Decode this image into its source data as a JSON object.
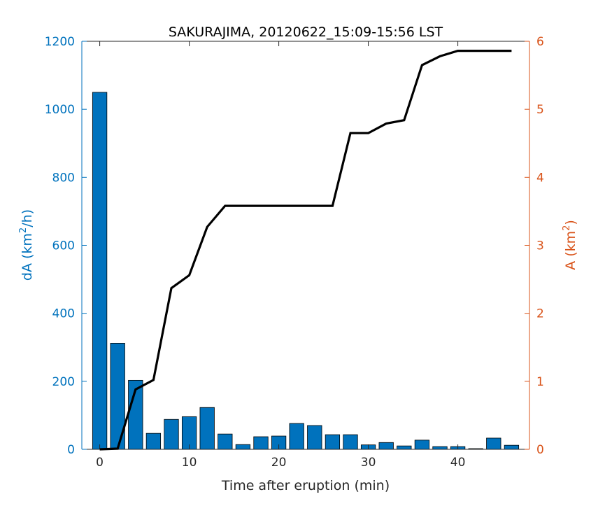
{
  "chart_data": {
    "type": "bar+line",
    "title": "SAKURAJIMA, 20120622_15:09-15:56 LST",
    "xlabel": "Time after eruption (min)",
    "ylabel_left": {
      "base": "dA (km",
      "sup": "2",
      "tail": "/h)"
    },
    "ylabel_right": {
      "base": "A (km",
      "sup": "2",
      "tail": ")"
    },
    "xlim": [
      -2,
      48
    ],
    "ylim_left": [
      0,
      1200
    ],
    "ylim_right": [
      0,
      6
    ],
    "xticks": [
      0,
      10,
      20,
      30,
      40
    ],
    "yticks_left": [
      0,
      200,
      400,
      600,
      800,
      1000,
      1200
    ],
    "yticks_right": [
      0,
      1,
      2,
      3,
      4,
      5,
      6
    ],
    "grid": false,
    "colors": {
      "bar_fill": "#0072BD",
      "bar_edge": "#000000",
      "line": "#000000",
      "left_axis": "#0072BD",
      "right_axis": "#D95319",
      "x_axis": "#262626"
    },
    "bars": {
      "axis": "left",
      "x": [
        0,
        2,
        4,
        6,
        8,
        10,
        12,
        14,
        16,
        18,
        20,
        22,
        24,
        26,
        28,
        30,
        32,
        34,
        36,
        38,
        40,
        42,
        44,
        46
      ],
      "values": [
        1050,
        312,
        203,
        47,
        88,
        96,
        123,
        45,
        14,
        37,
        39,
        76,
        70,
        43,
        43,
        13,
        20,
        10,
        27,
        8,
        8,
        2,
        33,
        12
      ]
    },
    "line": {
      "axis": "right",
      "x": [
        0,
        2,
        4,
        6,
        8,
        10,
        12,
        14,
        16,
        18,
        20,
        22,
        24,
        26,
        28,
        30,
        32,
        34,
        36,
        38,
        40,
        42,
        44,
        46
      ],
      "values": [
        0.0,
        0.01,
        0.88,
        1.02,
        2.37,
        2.56,
        3.27,
        3.58,
        3.58,
        3.58,
        3.58,
        3.58,
        3.58,
        3.58,
        4.65,
        4.65,
        4.79,
        4.84,
        5.65,
        5.78,
        5.86,
        5.86,
        5.86,
        5.86
      ]
    }
  }
}
